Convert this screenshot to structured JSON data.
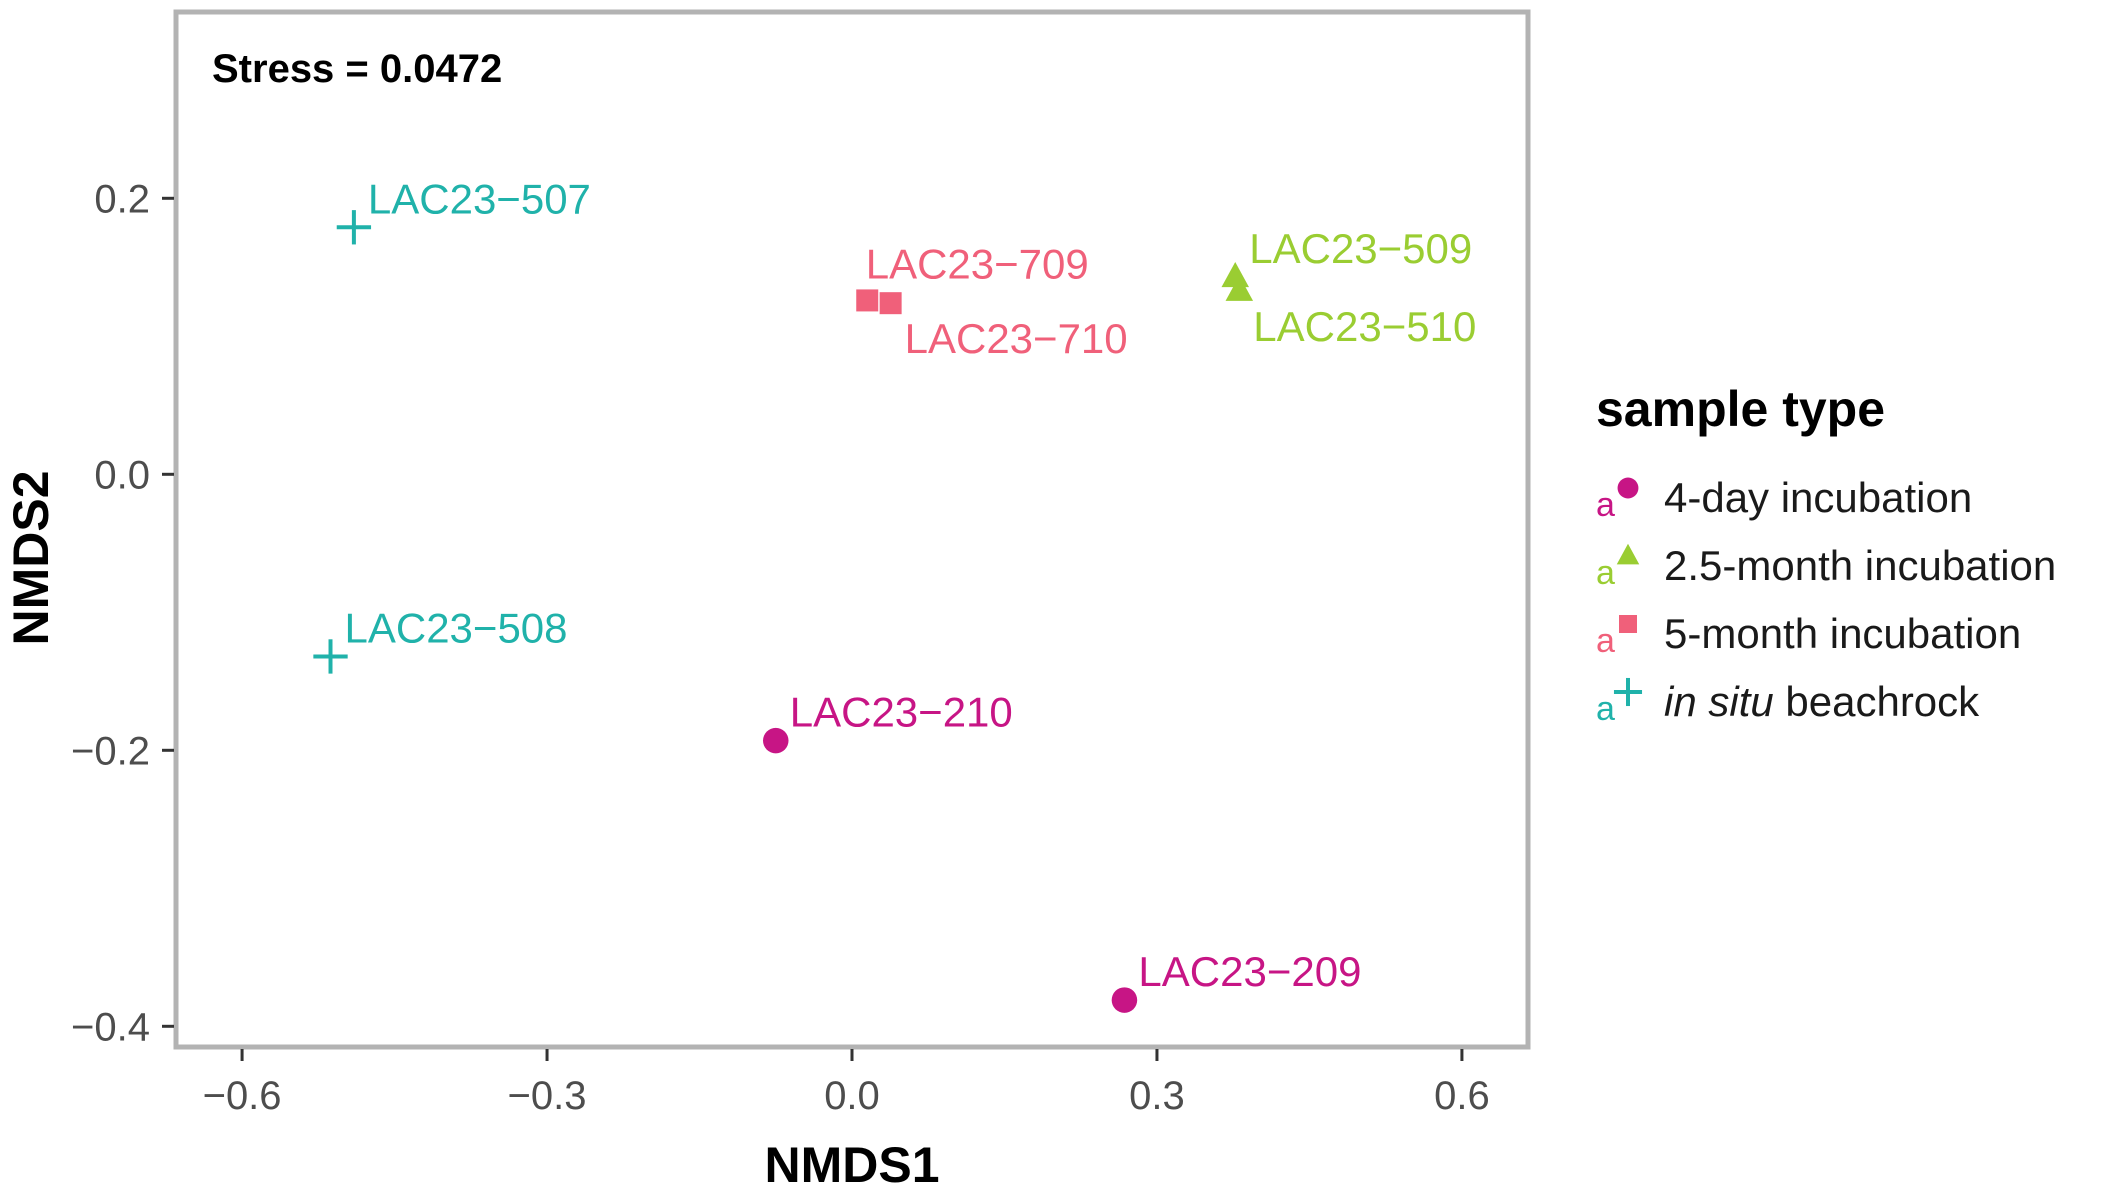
{
  "chart_data": {
    "type": "scatter",
    "title": "",
    "xlabel": "NMDS1",
    "ylabel": "NMDS2",
    "xlim": [
      -0.665,
      0.665
    ],
    "ylim": [
      -0.415,
      0.335
    ],
    "xticks": [
      -0.6,
      -0.3,
      0.0,
      0.3,
      0.6
    ],
    "xtick_labels": [
      "−0.6",
      "−0.3",
      "0.0",
      "0.3",
      "0.6"
    ],
    "yticks": [
      -0.4,
      -0.2,
      0.0,
      0.2
    ],
    "ytick_labels": [
      "−0.4",
      "−0.2",
      "0.0",
      "0.2"
    ],
    "grid": false,
    "annotation": "Stress = 0.0472",
    "legend": {
      "title": "sample type",
      "placement": "right",
      "key_letter": "a",
      "entries": [
        {
          "label": "4-day incubation",
          "italic_prefix": "",
          "shape": "circle",
          "color": "#c71585"
        },
        {
          "label": "2.5-month incubation",
          "italic_prefix": "",
          "shape": "triangle",
          "color": "#9acd32"
        },
        {
          "label": "5-month incubation",
          "italic_prefix": "",
          "shape": "square",
          "color": "#f0607a"
        },
        {
          "label": " beachrock",
          "italic_prefix": "in situ",
          "shape": "cross",
          "color": "#20b2aa"
        }
      ]
    },
    "series": [
      {
        "name": "4-day incubation",
        "shape": "circle",
        "color": "#c71585",
        "points": [
          {
            "id": "LAC23−210",
            "x": -0.075,
            "y": -0.193,
            "label_position": "above-right"
          },
          {
            "id": "LAC23−209",
            "x": 0.268,
            "y": -0.381,
            "label_position": "above-right"
          }
        ]
      },
      {
        "name": "2.5-month incubation",
        "shape": "triangle",
        "color": "#9acd32",
        "points": [
          {
            "id": "LAC23−509",
            "x": 0.377,
            "y": 0.143,
            "label_position": "above-right"
          },
          {
            "id": "LAC23−510",
            "x": 0.381,
            "y": 0.133,
            "label_position": "below-right"
          }
        ]
      },
      {
        "name": "5-month incubation",
        "shape": "square",
        "color": "#f0607a",
        "points": [
          {
            "id": "LAC23−709",
            "x": 0.015,
            "y": 0.126,
            "label_position": "above"
          },
          {
            "id": "LAC23−710",
            "x": 0.038,
            "y": 0.124,
            "label_position": "below-right"
          }
        ]
      },
      {
        "name": "in situ beachrock",
        "shape": "cross",
        "color": "#20b2aa",
        "points": [
          {
            "id": "LAC23−507",
            "x": -0.49,
            "y": 0.179,
            "label_position": "above-right"
          },
          {
            "id": "LAC23−508",
            "x": -0.513,
            "y": -0.132,
            "label_position": "above-right"
          }
        ]
      }
    ]
  }
}
